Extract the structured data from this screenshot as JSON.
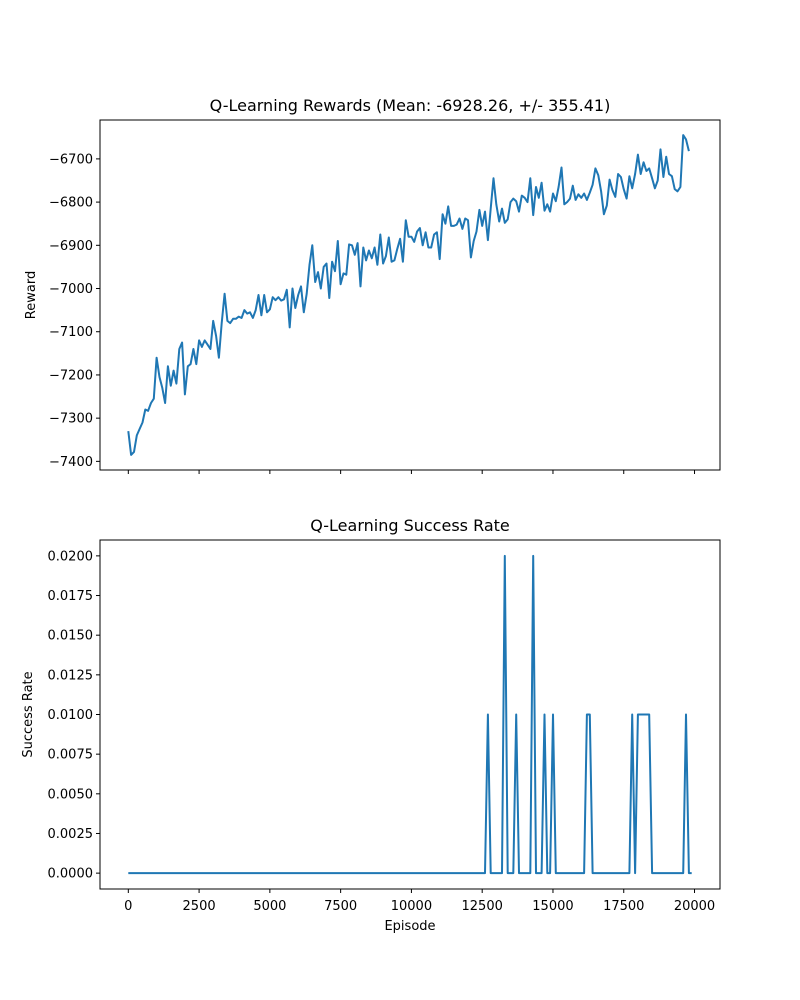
{
  "chart_data": [
    {
      "type": "line",
      "title": "Q-Learning Rewards (Mean: -6928.26, +/- 355.41)",
      "xlabel": "",
      "ylabel": "Reward",
      "xlim": [
        -1000,
        20900
      ],
      "ylim": [
        -7420,
        -6610
      ],
      "xticks": [
        0,
        2500,
        5000,
        7500,
        10000,
        12500,
        15000,
        17500,
        20000
      ],
      "xtick_labels": [],
      "yticks": [
        -7400,
        -7300,
        -7200,
        -7100,
        -7000,
        -6900,
        -6800,
        -6700
      ],
      "ytick_labels": [
        "−7400",
        "−7300",
        "−7200",
        "−7100",
        "−7000",
        "−6900",
        "−6800",
        "−6700"
      ],
      "line_color": "#1f77b4",
      "grid": false,
      "series": [
        {
          "x_start": 0,
          "x_step": 100,
          "values": [
            -7330,
            -7385,
            -7378,
            -7340,
            -7325,
            -7310,
            -7280,
            -7283,
            -7265,
            -7255,
            -7160,
            -7205,
            -7230,
            -7265,
            -7180,
            -7225,
            -7190,
            -7220,
            -7140,
            -7125,
            -7245,
            -7180,
            -7175,
            -7140,
            -7175,
            -7120,
            -7135,
            -7120,
            -7130,
            -7140,
            -7075,
            -7110,
            -7160,
            -7080,
            -7012,
            -7075,
            -7080,
            -7070,
            -7070,
            -7065,
            -7068,
            -7050,
            -7058,
            -7055,
            -7068,
            -7050,
            -7015,
            -7062,
            -7015,
            -7055,
            -7048,
            -7020,
            -7027,
            -7020,
            -7028,
            -7025,
            -7003,
            -7090,
            -7000,
            -7045,
            -7015,
            -6995,
            -7055,
            -7012,
            -6945,
            -6900,
            -6985,
            -6962,
            -7000,
            -6950,
            -6942,
            -7022,
            -6938,
            -6960,
            -6890,
            -6990,
            -6965,
            -6968,
            -6898,
            -6900,
            -6922,
            -6895,
            -6995,
            -6905,
            -6935,
            -6912,
            -6930,
            -6905,
            -6945,
            -6875,
            -6942,
            -6925,
            -6882,
            -6938,
            -6935,
            -6908,
            -6885,
            -6938,
            -6842,
            -6880,
            -6880,
            -6892,
            -6868,
            -6860,
            -6900,
            -6870,
            -6905,
            -6905,
            -6875,
            -6870,
            -6932,
            -6828,
            -6850,
            -6810,
            -6855,
            -6855,
            -6852,
            -6838,
            -6862,
            -6838,
            -6842,
            -6928,
            -6890,
            -6868,
            -6818,
            -6855,
            -6822,
            -6888,
            -6815,
            -6745,
            -6805,
            -6845,
            -6815,
            -6848,
            -6840,
            -6800,
            -6792,
            -6798,
            -6822,
            -6785,
            -6790,
            -6800,
            -6745,
            -6830,
            -6765,
            -6790,
            -6755,
            -6820,
            -6805,
            -6822,
            -6780,
            -6798,
            -6765,
            -6720,
            -6805,
            -6800,
            -6792,
            -6762,
            -6795,
            -6782,
            -6790,
            -6780,
            -6795,
            -6778,
            -6760,
            -6722,
            -6738,
            -6775,
            -6828,
            -6808,
            -6748,
            -6772,
            -6788,
            -6735,
            -6742,
            -6770,
            -6792,
            -6740,
            -6768,
            -6735,
            -6690,
            -6735,
            -6708,
            -6728,
            -6722,
            -6745,
            -6768,
            -6750,
            -6678,
            -6742,
            -6695,
            -6735,
            -6740,
            -6770,
            -6775,
            -6765,
            -6645,
            -6655,
            -6682
          ]
        }
      ]
    },
    {
      "type": "line",
      "title": "Q-Learning Success Rate",
      "xlabel": "Episode",
      "ylabel": "Success Rate",
      "xlim": [
        -1000,
        20900
      ],
      "ylim": [
        -0.001,
        0.021
      ],
      "xticks": [
        0,
        2500,
        5000,
        7500,
        10000,
        12500,
        15000,
        17500,
        20000
      ],
      "xtick_labels": [
        "0",
        "2500",
        "5000",
        "7500",
        "10000",
        "12500",
        "15000",
        "17500",
        "20000"
      ],
      "yticks": [
        0,
        0.0025,
        0.005,
        0.0075,
        0.01,
        0.0125,
        0.015,
        0.0175,
        0.02
      ],
      "ytick_labels": [
        "0.0000",
        "0.0025",
        "0.0050",
        "0.0075",
        "0.0100",
        "0.0125",
        "0.0150",
        "0.0175",
        "0.0200"
      ],
      "line_color": "#1f77b4",
      "grid": false,
      "series": [
        {
          "x": [
            0,
            12600,
            12700,
            12800,
            13200,
            13300,
            13400,
            13600,
            13700,
            13800,
            14200,
            14300,
            14400,
            14600,
            14700,
            14800,
            14900,
            15000,
            15100,
            16100,
            16200,
            16300,
            16400,
            17700,
            17800,
            17900,
            18000,
            18100,
            18400,
            18500,
            19600,
            19700,
            19800,
            19900
          ],
          "values": [
            0,
            0,
            0.01,
            0,
            0,
            0.02,
            0,
            0,
            0.01,
            0,
            0,
            0.02,
            0,
            0,
            0.01,
            0,
            0,
            0.01,
            0,
            0,
            0.01,
            0.01,
            0,
            0,
            0.01,
            0,
            0.01,
            0.01,
            0.01,
            0,
            0,
            0.01,
            0,
            0
          ]
        }
      ]
    }
  ]
}
